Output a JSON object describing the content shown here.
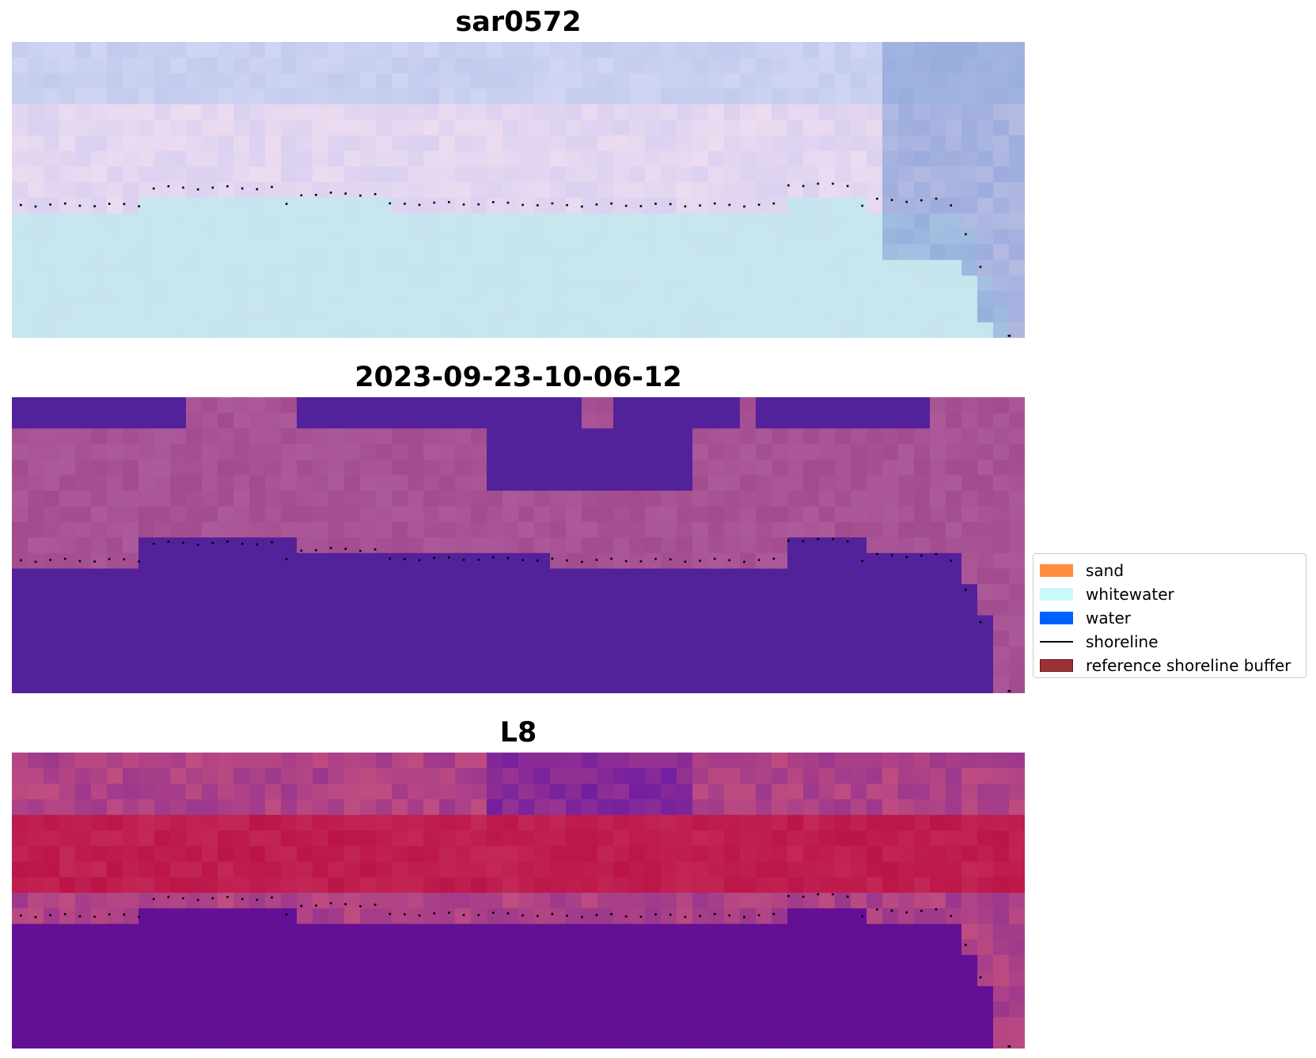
{
  "panels": [
    {
      "id": "image",
      "title": "sar0572"
    },
    {
      "id": "classification",
      "title": "2023-09-23-10-06-12"
    },
    {
      "id": "index",
      "title": "L8"
    }
  ],
  "legend": {
    "items": [
      {
        "label": "sand",
        "kind": "patch",
        "color": "#ff8c40"
      },
      {
        "label": "whitewater",
        "kind": "patch",
        "color": "#c8fafa"
      },
      {
        "label": "water",
        "kind": "patch",
        "color": "#0060ff"
      },
      {
        "label": "shoreline",
        "kind": "line",
        "color": "#000000"
      },
      {
        "label": "reference shoreline buffer",
        "kind": "patch",
        "color": "#9b3236",
        "edge": "#6b1a1e"
      }
    ]
  },
  "colors": {
    "sar_top": "#c3cbed",
    "sar_pink": "#ecdcf0",
    "sar_water": "#c7e7ee",
    "class_water": "#53229a",
    "class_land": "#ad5a9a",
    "index_water": "#641094",
    "index_red": "#bc1447",
    "index_pink": "#c04d80",
    "shoreline": "#000000"
  }
}
